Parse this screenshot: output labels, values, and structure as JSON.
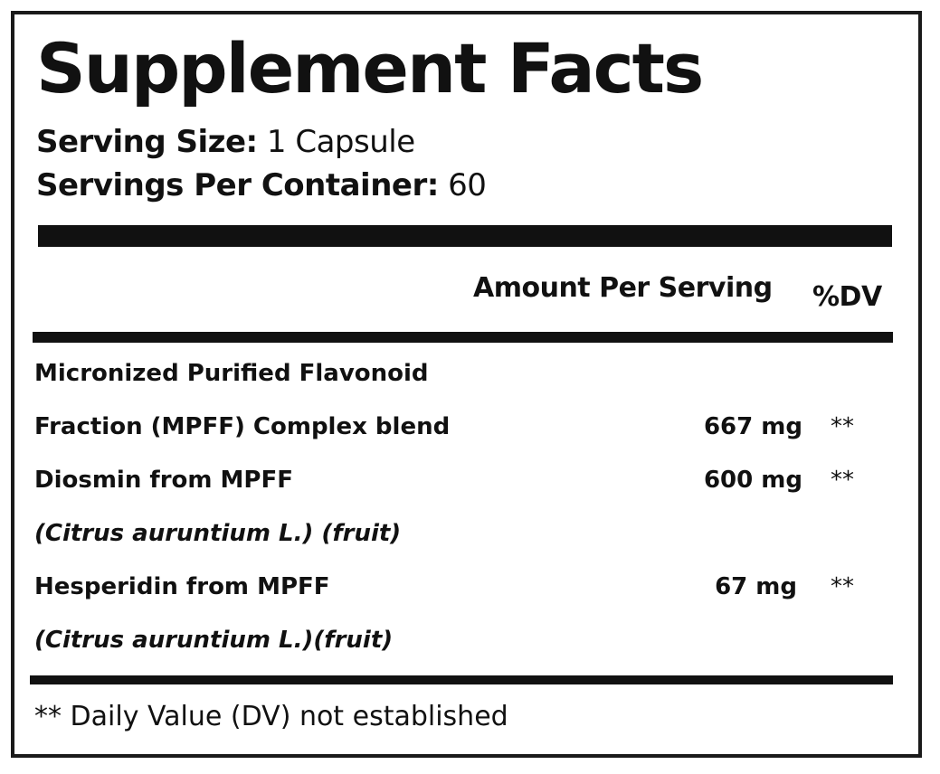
{
  "title": "Supplement Facts",
  "serving_size": {
    "label": "Serving Size:",
    "value": "1 Capsule"
  },
  "servings_per_container": {
    "label": "Servings Per Container:",
    "value": "60"
  },
  "columns": {
    "amount": "Amount Per Serving",
    "dv": "%DV"
  },
  "rows": [
    {
      "name": "Micronized Purified Flavonoid",
      "amount": "",
      "dv": ""
    },
    {
      "name": "Fraction (MPFF) Complex blend",
      "amount": "667 mg",
      "dv": "**"
    },
    {
      "name": "Diosmin from MPFF",
      "amount": "600 mg",
      "dv": "**"
    },
    {
      "name": "(Citrus auruntium L.) (fruit)",
      "amount": "",
      "dv": ""
    },
    {
      "name": "Hesperidin from MPFF",
      "amount": "67 mg",
      "dv": "**"
    },
    {
      "name": "(Citrus auruntium L.)(fruit)",
      "amount": "",
      "dv": ""
    }
  ],
  "footnote": "** Daily Value (DV) not established"
}
